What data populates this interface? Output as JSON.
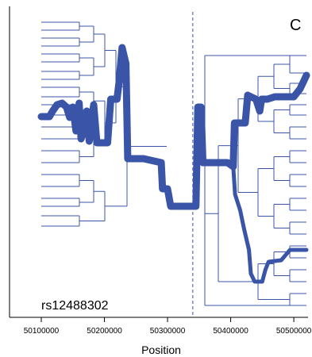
{
  "chart_data": {
    "type": "line",
    "panel_label": "C",
    "snp_label": "rs12488302",
    "xlabel": "Position",
    "xlim": [
      50100000,
      50520000
    ],
    "x_ticks": [
      50100000,
      50200000,
      50300000,
      50400000,
      50500000
    ],
    "x_tick_labels": [
      "50100000",
      "50200000",
      "50300000",
      "50400000",
      "50500000"
    ],
    "marker_position": 50340000,
    "colors": {
      "tree": "#3a55a8",
      "marker": "#3a55a8",
      "axis": "#000000",
      "frame": "#000000"
    },
    "left_tree_leaves": [
      28,
      38,
      48,
      58,
      68,
      78,
      90,
      100,
      110,
      122,
      132,
      145,
      160,
      175,
      190,
      205,
      220,
      235,
      250,
      260,
      272,
      285
    ],
    "right_tree_leaves": [
      70,
      92,
      105,
      118,
      132,
      145,
      160,
      175,
      190,
      205,
      220,
      235,
      250,
      265,
      280,
      295,
      310,
      325,
      340,
      355,
      370,
      385
    ],
    "main_path": [
      [
        50100000,
        147
      ],
      [
        50113000,
        147
      ],
      [
        50118000,
        140
      ],
      [
        50125000,
        132
      ],
      [
        50133000,
        130
      ],
      [
        50140000,
        135
      ],
      [
        50145000,
        148
      ],
      [
        50150000,
        135
      ],
      [
        50155000,
        165
      ],
      [
        50160000,
        130
      ],
      [
        50163000,
        175
      ],
      [
        50168000,
        162
      ],
      [
        50172000,
        140
      ],
      [
        50176000,
        178
      ],
      [
        50183000,
        132
      ],
      [
        50188000,
        180
      ],
      [
        50205000,
        180
      ],
      [
        50210000,
        125
      ],
      [
        50220000,
        125
      ],
      [
        50223000,
        105
      ],
      [
        50228000,
        60
      ],
      [
        50234000,
        80
      ],
      [
        50237000,
        200
      ],
      [
        50262000,
        200
      ],
      [
        50290000,
        205
      ],
      [
        50292000,
        238
      ],
      [
        50300000,
        238
      ],
      [
        50305000,
        260
      ],
      [
        50345000,
        260
      ],
      [
        50348000,
        135
      ],
      [
        50353000,
        135
      ],
      [
        50356000,
        205
      ],
      [
        50395000,
        205
      ],
      [
        50404000,
        210
      ],
      [
        50406000,
        155
      ],
      [
        50423000,
        155
      ],
      [
        50427000,
        120
      ],
      [
        50440000,
        125
      ],
      [
        50446000,
        140
      ],
      [
        50449000,
        125
      ],
      [
        50458000,
        125
      ],
      [
        50470000,
        122
      ],
      [
        50500000,
        122
      ],
      [
        50510000,
        112
      ],
      [
        50520000,
        95
      ]
    ],
    "lower_branch": [
      [
        50404000,
        210
      ],
      [
        50407000,
        245
      ],
      [
        50415000,
        265
      ],
      [
        50421000,
        288
      ],
      [
        50429000,
        315
      ],
      [
        50432000,
        345
      ],
      [
        50438000,
        355
      ],
      [
        50450000,
        355
      ],
      [
        50455000,
        340
      ],
      [
        50460000,
        330
      ],
      [
        50480000,
        328
      ],
      [
        50494000,
        315
      ],
      [
        50520000,
        315
      ]
    ]
  }
}
